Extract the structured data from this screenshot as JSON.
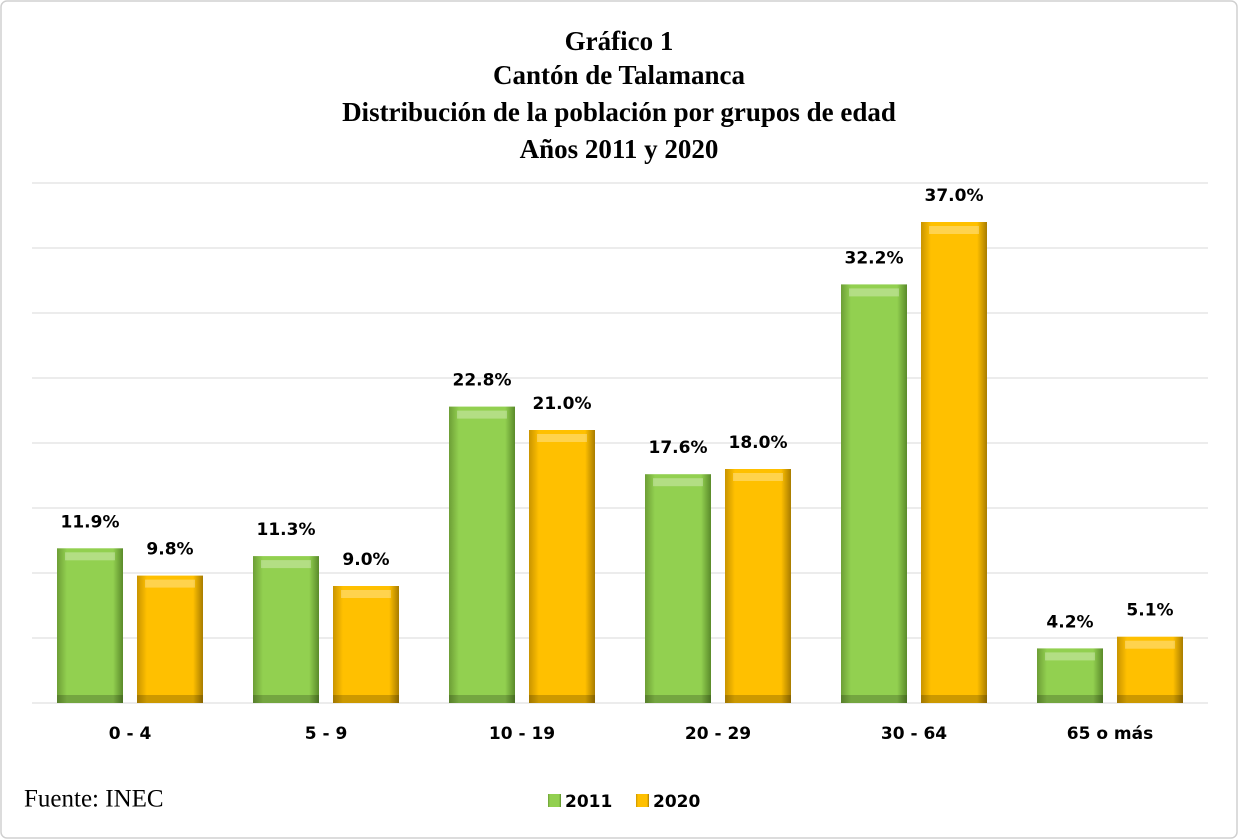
{
  "chart_data": {
    "type": "bar",
    "title": [
      "Gráfico 1",
      "Cantón de Talamanca",
      "Distribución de la población por grupos de edad",
      "Años 2011 y 2020"
    ],
    "categories": [
      "0 - 4",
      "5 - 9",
      "10 - 19",
      "20 - 29",
      "30 - 64",
      "65 o más"
    ],
    "series": [
      {
        "name": "2011",
        "color": "#92d050",
        "values": [
          11.9,
          11.3,
          22.8,
          17.6,
          32.2,
          4.2
        ],
        "value_labels": [
          "11.9%",
          "11.3%",
          "22.8%",
          "17.6%",
          "32.2%",
          "4.2%"
        ]
      },
      {
        "name": "2020",
        "color": "#ffc000",
        "values": [
          9.8,
          9.0,
          21.0,
          18.0,
          37.0,
          5.1
        ],
        "value_labels": [
          "9.8%",
          "9.0%",
          "21.0%",
          "18.0%",
          "37.0%",
          "5.1%"
        ]
      }
    ],
    "ylim": [
      0,
      40
    ],
    "yticks": [
      0,
      5,
      10,
      15,
      20,
      25,
      30,
      35,
      40
    ],
    "grid": true,
    "legend": "bottom",
    "source": "Fuente: INEC"
  }
}
